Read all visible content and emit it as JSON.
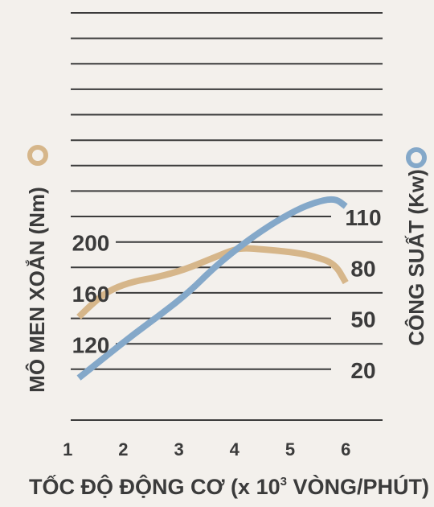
{
  "chart_data": {
    "type": "line",
    "xlabel": "TỐC ĐỘ ĐỘNG CƠ (x 10",
    "xlabel_sup": "3",
    "xlabel_tail": " VÒNG/PHÚT)",
    "ylabel_left": "MÔ MEN XOẮN (Nm)",
    "ylabel_right": "CÔNG SUẤT (Kw)",
    "x_ticks": [
      "1",
      "2",
      "3",
      "4",
      "5",
      "6"
    ],
    "xlim": [
      0,
      6.5
    ],
    "y_left_ticks": [
      "120",
      "160",
      "200"
    ],
    "y_left_tick_values": [
      120,
      160,
      200
    ],
    "ylim_left": [
      100,
      220
    ],
    "y_right_ticks": [
      "20",
      "50",
      "80",
      "110"
    ],
    "y_right_tick_values": [
      20,
      50,
      80,
      110
    ],
    "ylim_right": [
      10,
      120
    ],
    "grid": true,
    "colors": {
      "torque": "#d6b68a",
      "power": "#84a8c9",
      "grid": "#3b3b3b",
      "text": "#3b3b3b"
    },
    "series": [
      {
        "key": "torque",
        "axis": "left",
        "x": [
          1.2,
          1.5,
          1.8,
          2.2,
          2.6,
          3.1,
          3.6,
          4.0,
          4.2,
          4.5,
          5.0,
          5.4,
          5.8,
          6.0
        ],
        "y": [
          141,
          154,
          163,
          169,
          172,
          178,
          187,
          194,
          195,
          194,
          192,
          189,
          183,
          168
        ]
      },
      {
        "key": "power",
        "axis": "right",
        "x": [
          1.2,
          1.7,
          2.2,
          2.7,
          3.2,
          3.6,
          4.0,
          4.5,
          5.0,
          5.4,
          5.8,
          6.0
        ],
        "y": [
          15,
          28,
          41,
          53,
          66,
          79,
          90,
          102,
          112,
          118,
          121,
          116
        ]
      }
    ]
  }
}
